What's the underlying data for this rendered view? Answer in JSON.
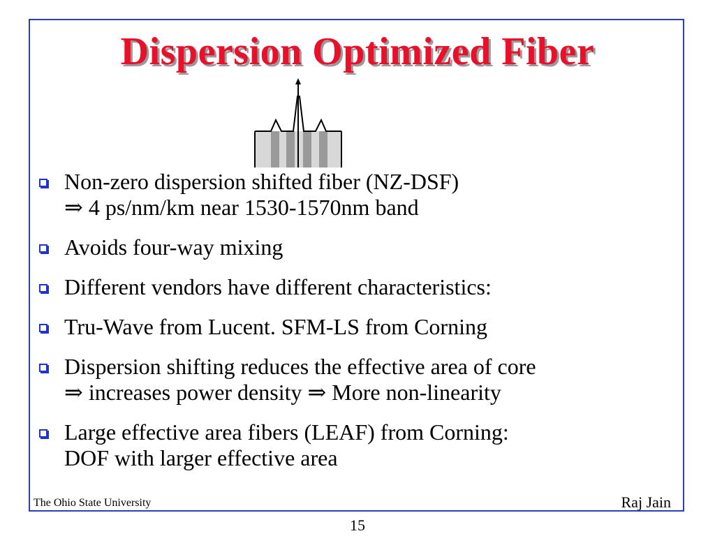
{
  "slide": {
    "title": "Dispersion Optimized Fiber",
    "bullets": [
      {
        "lines": [
          "Non-zero dispersion shifted fiber (NZ-DSF)",
          "⇒ 4 ps/nm/km near 1530-1570nm band"
        ]
      },
      {
        "lines": [
          "Avoids four-way mixing"
        ]
      },
      {
        "lines": [
          "Different vendors have different characteristics:"
        ]
      },
      {
        "lines": [
          "Tru-Wave from Lucent. SFM-LS from Corning"
        ]
      },
      {
        "lines": [
          "Dispersion shifting reduces the effective area of core",
          "⇒ increases power density ⇒ More non-linearity"
        ]
      },
      {
        "lines": [
          "Large effective area fibers (LEAF) from Corning:",
          "DOF with larger effective area"
        ]
      }
    ],
    "footer_left": "The Ohio State University",
    "footer_right": "Raj Jain",
    "page_number": "15",
    "colors": {
      "title": "#e8102a",
      "frame": "#2b3fb8",
      "bullet_box": "#2233cc"
    },
    "icons": {
      "bullet": "hollow-square-bullet-icon",
      "figure": "fiber-index-profile-icon"
    }
  }
}
